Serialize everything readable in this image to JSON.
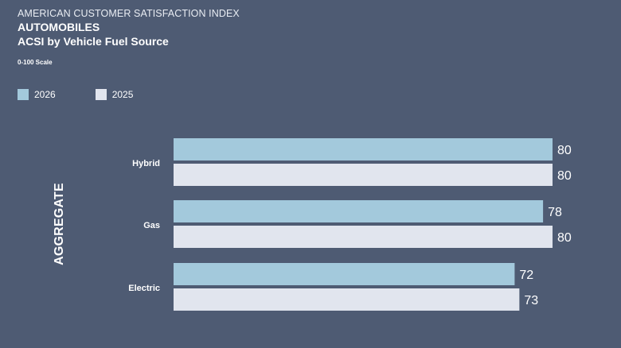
{
  "header": {
    "org": "AMERICAN CUSTOMER SATISFACTION INDEX",
    "title": "AUTOMOBILES",
    "subtitle": "ACSI by Vehicle Fuel Source",
    "scale_note": "0-100 Scale"
  },
  "side_label": "AGGREGATE",
  "colors": {
    "background": "#4e5b73",
    "s2026": "#a3c9dc",
    "s2025": "#e1e5ee"
  },
  "chart_data": {
    "type": "bar",
    "orientation": "horizontal",
    "categories": [
      "Hybrid",
      "Gas",
      "Electric"
    ],
    "series": [
      {
        "name": "2026",
        "color": "#a3c9dc",
        "values": [
          80,
          78,
          72
        ]
      },
      {
        "name": "2025",
        "color": "#e1e5ee",
        "values": [
          80,
          80,
          73
        ]
      }
    ],
    "data_labels": true,
    "legend_position": "top-left",
    "xlim": [
      0,
      100
    ],
    "grid": false
  }
}
